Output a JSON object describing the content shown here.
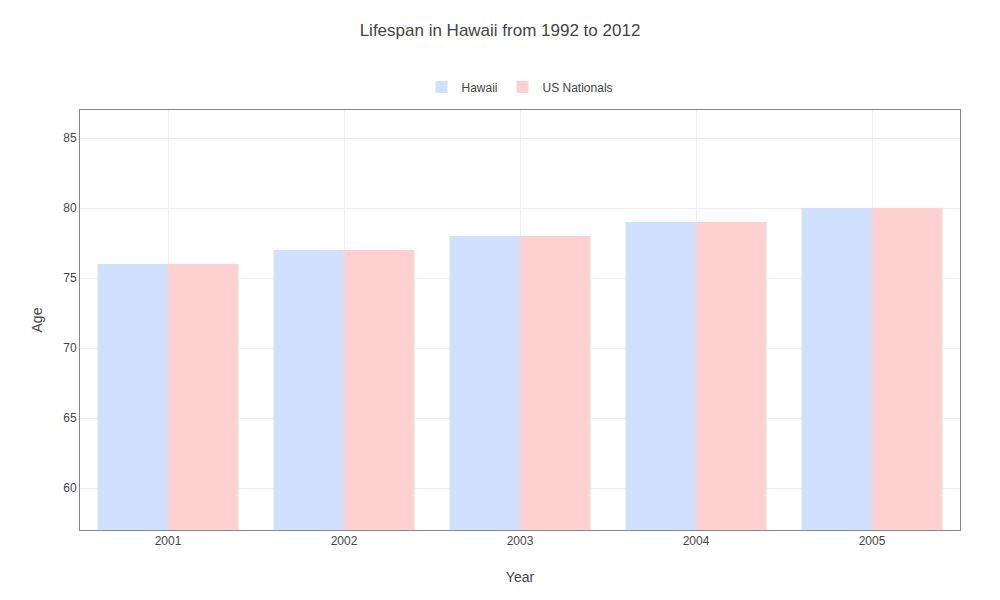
{
  "chart_data": {
    "type": "bar",
    "title": "Lifespan in Hawaii from 1992 to 2012",
    "x_label": "Year",
    "y_label": "Age",
    "categories": [
      "2001",
      "2002",
      "2003",
      "2004",
      "2005"
    ],
    "series": [
      {
        "name": "Hawaii",
        "color": "#d0e0ff",
        "values": [
          76,
          77,
          78,
          79,
          80
        ]
      },
      {
        "name": "US Nationals",
        "color": "#ffd0d0",
        "values": [
          76,
          77,
          78,
          79,
          80
        ]
      }
    ],
    "ylim": [
      57,
      87
    ],
    "yticks": [
      60,
      65,
      70,
      75,
      80,
      85
    ],
    "grid": true,
    "legend": "top"
  }
}
